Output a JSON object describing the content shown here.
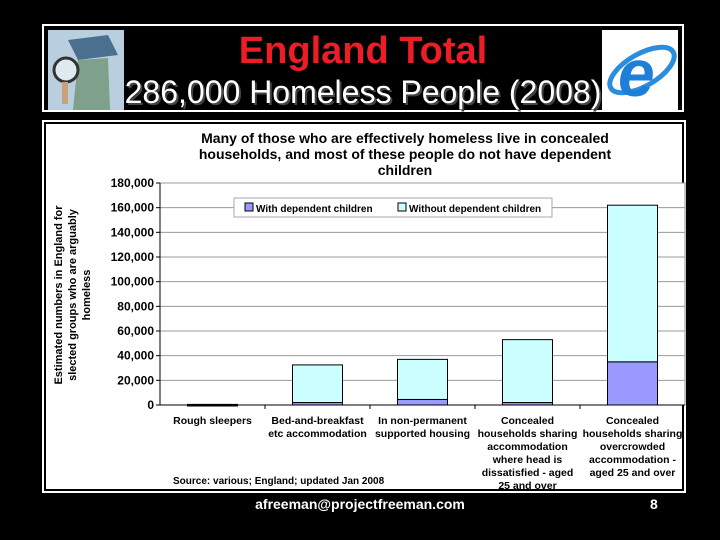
{
  "slide": {
    "title": "England Total",
    "subtitle": "286,000 Homeless People (2008)",
    "footer": "afreeman@projectfreeman.com",
    "page": "8"
  },
  "chart_data": {
    "type": "bar",
    "stacked": true,
    "title": [
      "Many of those who are effectively homeless live in concealed",
      "households, and most of these people do not have dependent",
      "children"
    ],
    "ylabel": [
      "Estimated numbers in England for",
      "slected groups who are arguably",
      "homeless"
    ],
    "xlabel": "",
    "ylim": [
      0,
      180000
    ],
    "yticks": [
      "0",
      "20,000",
      "40,000",
      "60,000",
      "80,000",
      "100,000",
      "120,000",
      "140,000",
      "160,000",
      "180,000"
    ],
    "categories": [
      [
        "Rough sleepers"
      ],
      [
        "Bed-and-breakfast",
        "etc accommodation"
      ],
      [
        "In non-permanent",
        "supported housing"
      ],
      [
        "Concealed",
        "households sharing",
        "accommodation",
        "where head is",
        "dissatisfied - aged",
        "25 and over"
      ],
      [
        "Concealed",
        "households sharing",
        "overcrowded",
        "accommodation -",
        "aged 25 and over"
      ]
    ],
    "series": [
      {
        "name": "With dependent children",
        "color": "#9999ff",
        "values": [
          0,
          2000,
          4500,
          2000,
          35000
        ]
      },
      {
        "name": "Without dependent children",
        "color": "#ccffff",
        "values": [
          500,
          30500,
          32500,
          51000,
          127000
        ]
      }
    ],
    "legend_position": "top",
    "grid": true,
    "source": "Source: various; England; updated Jan 2008"
  }
}
